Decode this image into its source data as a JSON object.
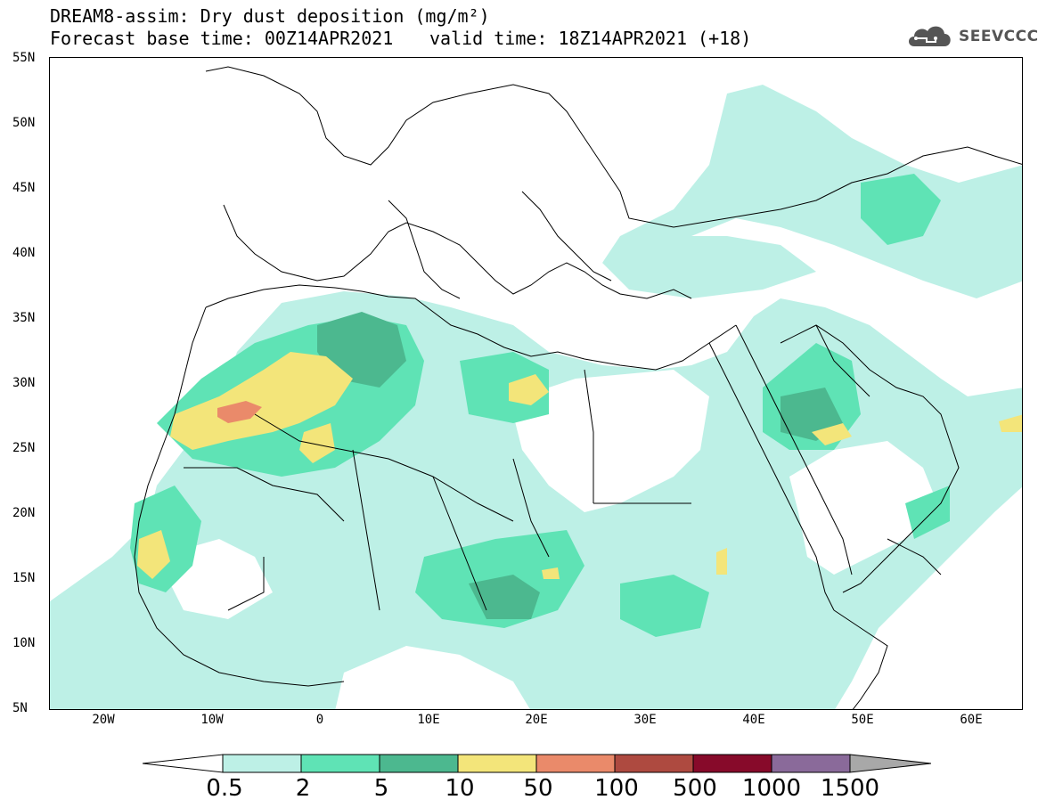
{
  "title": {
    "line1": "DREAM8-assim: Dry dust deposition (mg/m²)",
    "line2": "Forecast base time: 00Z14APR2021",
    "valid": "valid time: 18Z14APR2021 (+18)"
  },
  "logo": {
    "icon": "cloud-icon",
    "text": "SEEVCCC"
  },
  "axes": {
    "lat_labels": [
      "55N",
      "50N",
      "45N",
      "40N",
      "35N",
      "30N",
      "25N",
      "20N",
      "15N",
      "10N",
      "5N"
    ],
    "lon_labels": [
      "20W",
      "10W",
      "0",
      "10E",
      "20E",
      "30E",
      "40E",
      "50E",
      "60E"
    ]
  },
  "colors": {
    "c1": "#bdf0e6",
    "c2": "#5fe3b5",
    "c3": "#4cb88f",
    "c4": "#f3e57a",
    "c5": "#ea8a6a",
    "c6": "#ae4a40",
    "c7": "#870a2a",
    "c8": "#8a6a9a",
    "c9": "#a8a8a8"
  },
  "colorbar": {
    "labels": [
      "0.5",
      "2",
      "5",
      "10",
      "50",
      "100",
      "500",
      "1000",
      "1500"
    ]
  }
}
